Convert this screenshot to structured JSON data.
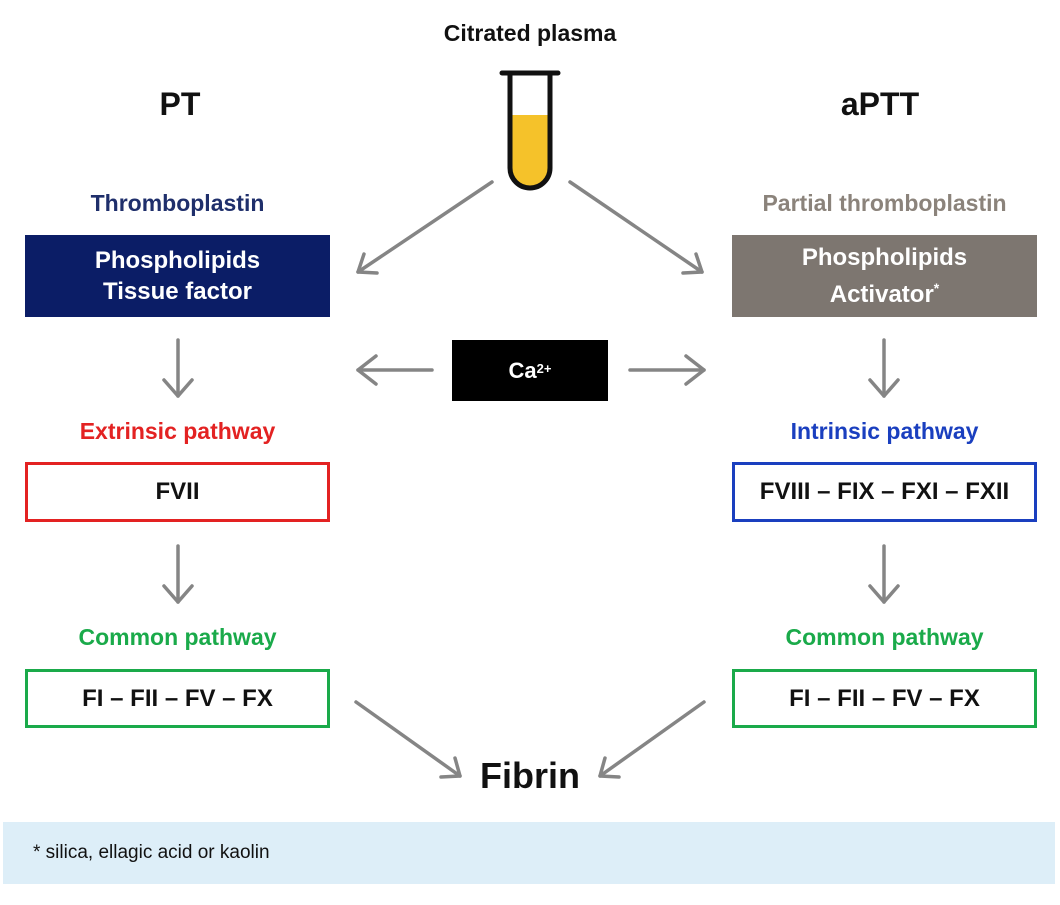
{
  "top": {
    "title": "Citrated plasma"
  },
  "left": {
    "header": "PT",
    "reagent_title": "Thromboplastin",
    "reagent_lines": [
      "Phospholipids",
      "Tissue factor"
    ],
    "pathway_title": "Extrinsic pathway",
    "pathway_box": "FVII",
    "common_title": "Common pathway",
    "common_box": "FI – FII – FV – FX"
  },
  "right": {
    "header": "aPTT",
    "reagent_title": "Partial thromboplastin",
    "reagent_lines": [
      "Phospholipids",
      "Activator"
    ],
    "reagent_mark": "*",
    "pathway_title": "Intrinsic pathway",
    "pathway_box": "FVIII – FIX – FXI – FXII",
    "common_title": "Common pathway",
    "common_box": "FI – FII – FV – FX"
  },
  "center": {
    "calcium": "Ca",
    "calcium_charge": "2+"
  },
  "result": {
    "label": "Fibrin"
  },
  "footnote": {
    "text": "* silica, ellagic acid or kaolin"
  },
  "colors": {
    "pt_reagent": "#0b1d66",
    "aptt_reagent": "#7d7670",
    "extrinsic": "#e32222",
    "intrinsic": "#1a3fbf",
    "common": "#1aaa4a",
    "arrow": "#858585",
    "plasma": "#f5c22a",
    "footnote_bg": "#ddeef8"
  }
}
